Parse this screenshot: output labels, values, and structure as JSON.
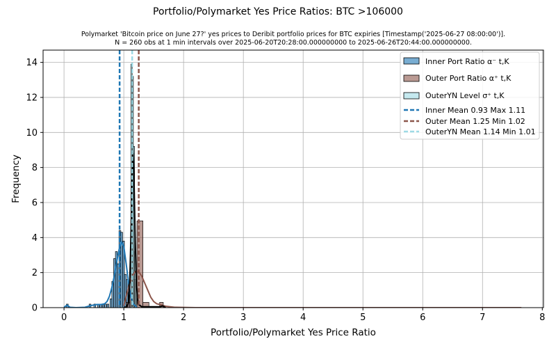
{
  "chart_data": {
    "type": "histogram",
    "title": "Portfolio/Polymarket Yes Price Ratios: BTC >106000",
    "subtitle_line1": "Polymarket 'Bitcoin price on June 27?' yes prices to Deribit portfolio prices for BTC expiries [Timestamp('2025-06-27 08:00:00')].",
    "subtitle_line2": "N = 260 obs at 1 min intervals over 2025-06-20T20:28:00.000000000 to 2025-06-26T20:44:00.000000000.",
    "xlabel": "Portfolio/Polymarket Yes Price Ratio",
    "ylabel": "Frequency",
    "xlim": [
      -0.35,
      8.02
    ],
    "ylim": [
      0,
      14.7
    ],
    "x_ticks": [
      0,
      1,
      2,
      3,
      4,
      5,
      6,
      7,
      8
    ],
    "y_ticks": [
      0,
      2,
      4,
      6,
      8,
      10,
      12,
      14
    ],
    "grid": true,
    "legend_position": "top-right",
    "legend": {
      "inner_bar": "Inner Port Ratio α⁻ t,K",
      "outer_bar": "Outer Port Ratio α⁺ t,K",
      "outeryn_bar": "OuterYN Level σ⁺ t,K",
      "inner_mean": "Inner Mean 0.93 Max 1.11",
      "outer_mean": "Outer Mean 1.25 Min 1.02",
      "outeryn_mean": "OuterYN Mean 1.14 Min 1.01"
    },
    "colors": {
      "inner": "#1f77b4",
      "outer": "#8c564b",
      "outeryn": "#9edae5",
      "kde_outeryn": "#000000",
      "grid": "#b0b0b0"
    },
    "series": [
      {
        "key": "inner",
        "bins": [
          {
            "x0": 0.04,
            "x1": 0.07,
            "count": 0.2
          },
          {
            "x0": 0.42,
            "x1": 0.45,
            "count": 0.2
          },
          {
            "x0": 0.5,
            "x1": 0.53,
            "count": 0.2
          },
          {
            "x0": 0.56,
            "x1": 0.59,
            "count": 0.2
          },
          {
            "x0": 0.6,
            "x1": 0.63,
            "count": 0.2
          },
          {
            "x0": 0.64,
            "x1": 0.67,
            "count": 0.2
          },
          {
            "x0": 0.68,
            "x1": 0.71,
            "count": 0.2
          },
          {
            "x0": 0.72,
            "x1": 0.75,
            "count": 0.2
          },
          {
            "x0": 0.77,
            "x1": 0.8,
            "count": 0.5
          },
          {
            "x0": 0.8,
            "x1": 0.83,
            "count": 1.5
          },
          {
            "x0": 0.83,
            "x1": 0.86,
            "count": 2.8
          },
          {
            "x0": 0.86,
            "x1": 0.89,
            "count": 3.2
          },
          {
            "x0": 0.89,
            "x1": 0.92,
            "count": 2.5
          },
          {
            "x0": 0.92,
            "x1": 0.95,
            "count": 4.4
          },
          {
            "x0": 0.95,
            "x1": 0.98,
            "count": 4.3
          },
          {
            "x0": 0.98,
            "x1": 1.01,
            "count": 3.8
          },
          {
            "x0": 1.01,
            "x1": 1.04,
            "count": 1.9
          },
          {
            "x0": 1.04,
            "x1": 1.07,
            "count": 1.6
          },
          {
            "x0": 1.07,
            "x1": 1.1,
            "count": 1.2
          }
        ],
        "kde": [
          [
            0.0,
            0.02
          ],
          [
            0.05,
            0.14
          ],
          [
            0.1,
            0.02
          ],
          [
            0.2,
            0.0
          ],
          [
            0.35,
            0.02
          ],
          [
            0.45,
            0.12
          ],
          [
            0.55,
            0.18
          ],
          [
            0.62,
            0.18
          ],
          [
            0.68,
            0.22
          ],
          [
            0.72,
            0.35
          ],
          [
            0.76,
            0.65
          ],
          [
            0.8,
            1.15
          ],
          [
            0.84,
            1.8
          ],
          [
            0.88,
            2.6
          ],
          [
            0.92,
            3.3
          ],
          [
            0.96,
            3.75
          ],
          [
            1.0,
            3.5
          ],
          [
            1.04,
            2.5
          ],
          [
            1.08,
            1.4
          ],
          [
            1.12,
            0.6
          ],
          [
            1.16,
            0.2
          ],
          [
            1.22,
            0.02
          ]
        ]
      },
      {
        "key": "outer",
        "bins": [
          {
            "x0": 1.04,
            "x1": 1.1,
            "count": 0.3
          },
          {
            "x0": 1.1,
            "x1": 1.16,
            "count": 0.8
          },
          {
            "x0": 1.16,
            "x1": 1.22,
            "count": 1.6
          },
          {
            "x0": 1.22,
            "x1": 1.32,
            "count": 4.95
          },
          {
            "x0": 1.32,
            "x1": 1.42,
            "count": 0.3
          },
          {
            "x0": 1.6,
            "x1": 1.66,
            "count": 0.3
          }
        ],
        "kde": [
          [
            1.0,
            0.1
          ],
          [
            1.05,
            0.8
          ],
          [
            1.1,
            1.4
          ],
          [
            1.15,
            1.85
          ],
          [
            1.2,
            2.1
          ],
          [
            1.25,
            2.05
          ],
          [
            1.3,
            1.8
          ],
          [
            1.35,
            1.4
          ],
          [
            1.4,
            1.0
          ],
          [
            1.45,
            0.6
          ],
          [
            1.5,
            0.35
          ],
          [
            1.55,
            0.22
          ],
          [
            1.6,
            0.18
          ],
          [
            1.7,
            0.08
          ],
          [
            1.85,
            0.02
          ],
          [
            2.2,
            0.0
          ],
          [
            7.65,
            0.0
          ]
        ]
      },
      {
        "key": "outeryn",
        "bins": [
          {
            "x0": 1.12,
            "x1": 1.14,
            "count": 13.9
          },
          {
            "x0": 1.14,
            "x1": 1.16,
            "count": 13.2
          },
          {
            "x0": 1.16,
            "x1": 1.18,
            "count": 9.2
          },
          {
            "x0": 1.18,
            "x1": 1.2,
            "count": 3.2
          },
          {
            "x0": 1.2,
            "x1": 1.22,
            "count": 1.2
          }
        ],
        "kde": [
          [
            1.0,
            0.0
          ],
          [
            1.05,
            0.05
          ],
          [
            1.08,
            0.3
          ],
          [
            1.1,
            1.5
          ],
          [
            1.12,
            4.2
          ],
          [
            1.14,
            7.6
          ],
          [
            1.155,
            8.8
          ],
          [
            1.17,
            7.5
          ],
          [
            1.19,
            4.0
          ],
          [
            1.21,
            1.4
          ],
          [
            1.24,
            0.2
          ],
          [
            1.3,
            0.05
          ],
          [
            1.6,
            0.05
          ],
          [
            1.65,
            0.1
          ],
          [
            1.7,
            0.0
          ]
        ]
      }
    ],
    "mean_lines": [
      {
        "key": "inner",
        "x": 0.93
      },
      {
        "key": "outer",
        "x": 1.25
      },
      {
        "key": "outeryn",
        "x": 1.14
      }
    ]
  }
}
